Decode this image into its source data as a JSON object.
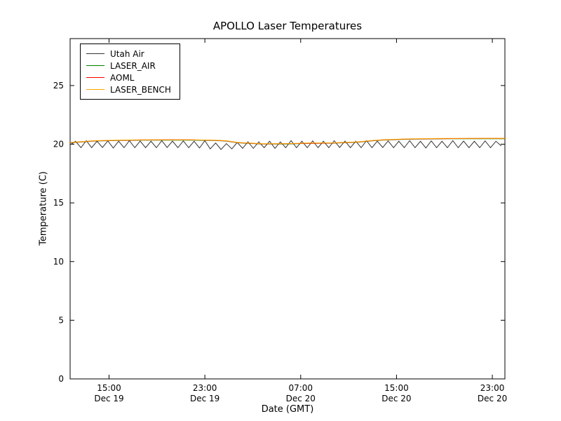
{
  "chart_data": {
    "type": "line",
    "title": "APOLLO Laser Temperatures",
    "xlabel": "Date (GMT)",
    "ylabel": "Temperature (C)",
    "ylim": [
      0,
      29
    ],
    "xlim_hours": [
      0,
      36.3
    ],
    "y_ticks": [
      0,
      5,
      10,
      15,
      20,
      25
    ],
    "x_ticks": [
      {
        "hours": 3.25,
        "time": "15:00",
        "date": "Dec 19"
      },
      {
        "hours": 11.25,
        "time": "23:00",
        "date": "Dec 19"
      },
      {
        "hours": 19.25,
        "time": "07:00",
        "date": "Dec 20"
      },
      {
        "hours": 27.25,
        "time": "15:00",
        "date": "Dec 20"
      },
      {
        "hours": 35.25,
        "time": "23:00",
        "date": "Dec 20"
      }
    ],
    "grid": false,
    "legend_position": "upper-left",
    "series": [
      {
        "name": "Utah Air",
        "color": "#333333",
        "description": "sawtooth oscillation around 20 C, period ~0.9 h, range ~19.6-20.3 C",
        "x_start": 0,
        "x_step": 0.45,
        "values": [
          19.95,
          20.25,
          19.7,
          20.3,
          19.7,
          20.25,
          19.72,
          20.28,
          19.68,
          20.25,
          19.7,
          20.3,
          19.7,
          20.27,
          19.7,
          20.25,
          19.7,
          20.3,
          19.72,
          20.26,
          19.7,
          20.28,
          19.7,
          20.25,
          19.68,
          20.3,
          19.6,
          20.1,
          19.55,
          20.05,
          19.6,
          20.15,
          19.65,
          20.2,
          19.65,
          20.2,
          19.7,
          20.25,
          19.65,
          20.2,
          19.7,
          20.3,
          19.7,
          20.25,
          19.7,
          20.28,
          19.7,
          20.25,
          19.7,
          20.3,
          19.72,
          20.27,
          19.7,
          20.25,
          19.7,
          20.3,
          19.7,
          20.26,
          19.72,
          20.28,
          19.7,
          20.25,
          19.7,
          20.3,
          19.7,
          20.25,
          19.68,
          20.28,
          19.7,
          20.25,
          19.7,
          20.3,
          19.7,
          20.27,
          19.7,
          20.25,
          19.7,
          20.28,
          19.7,
          20.25,
          19.85
        ]
      },
      {
        "name": "LASER_AIR",
        "color": "#008000",
        "description": "nearly constant ~20.0-20.5 C, hidden beneath LASER_BENCH line",
        "x": [
          0,
          2,
          4,
          6,
          8,
          10,
          12,
          13,
          14,
          16,
          18,
          20,
          22,
          24,
          25,
          26,
          28,
          30,
          32,
          34,
          36.3
        ],
        "values": [
          20.12,
          20.27,
          20.32,
          20.35,
          20.35,
          20.35,
          20.32,
          20.27,
          20.12,
          20.02,
          20.02,
          20.07,
          20.09,
          20.17,
          20.27,
          20.35,
          20.42,
          20.45,
          20.47,
          20.47,
          20.47
        ]
      },
      {
        "name": "AOML",
        "color": "#ff0000",
        "description": "nearly constant ~20.0-20.5 C, hidden beneath LASER_BENCH line",
        "x": [
          0,
          2,
          4,
          6,
          8,
          10,
          12,
          13,
          14,
          16,
          18,
          20,
          22,
          24,
          25,
          26,
          28,
          30,
          32,
          34,
          36.3
        ],
        "values": [
          20.14,
          20.28,
          20.33,
          20.36,
          20.37,
          20.37,
          20.33,
          20.28,
          20.13,
          20.03,
          20.04,
          20.08,
          20.1,
          20.18,
          20.28,
          20.36,
          20.43,
          20.46,
          20.48,
          20.49,
          20.49
        ]
      },
      {
        "name": "LASER_BENCH",
        "color": "#ffa500",
        "description": "smooth line ~20.15 C rising to ~20.4, dipping to ~20.05 mid-period, ending ~20.5 C",
        "x": [
          0,
          2,
          4,
          6,
          8,
          10,
          12,
          13,
          14,
          16,
          18,
          20,
          22,
          24,
          25,
          26,
          28,
          30,
          32,
          34,
          36.3
        ],
        "values": [
          20.15,
          20.3,
          20.35,
          20.38,
          20.38,
          20.38,
          20.35,
          20.3,
          20.15,
          20.05,
          20.05,
          20.1,
          20.12,
          20.2,
          20.3,
          20.38,
          20.45,
          20.48,
          20.5,
          20.5,
          20.5
        ]
      }
    ]
  }
}
